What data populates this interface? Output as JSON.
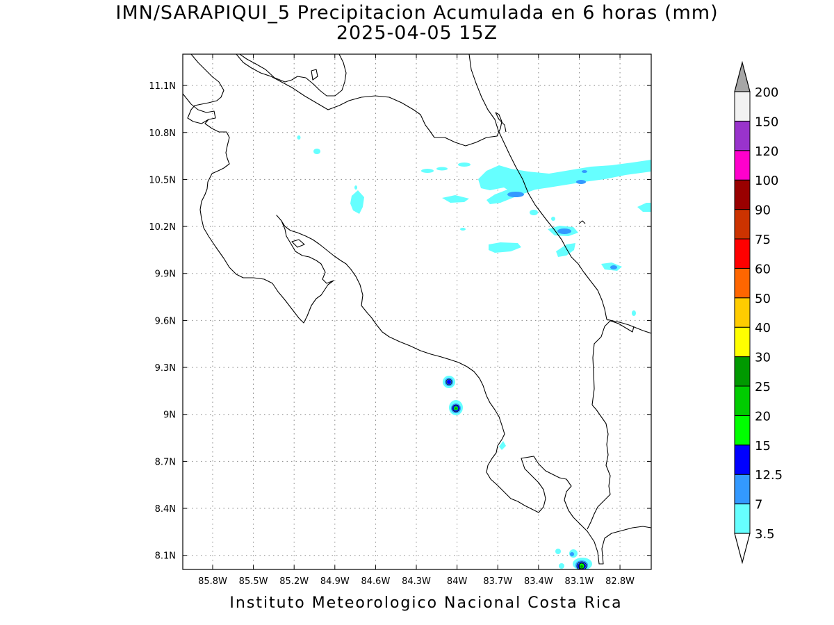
{
  "title": "IMN/SARAPIQUI_5 Precipitacion Acumulada en 6 horas (mm)",
  "subtitle": "2025-04-05 15Z",
  "footer": "Instituto Meteorologico Nacional Costa Rica",
  "map": {
    "lon_range": [
      -86.02,
      -82.57
    ],
    "lat_range": [
      8.01,
      11.3
    ],
    "lon_ticks": [
      "85.8W",
      "85.5W",
      "85.2W",
      "84.9W",
      "84.6W",
      "84.3W",
      "84W",
      "83.7W",
      "83.4W",
      "83.1W",
      "82.8W"
    ],
    "lat_ticks": [
      "11.1N",
      "10.8N",
      "10.5N",
      "10.2N",
      "9.9N",
      "9.6N",
      "9.3N",
      "9N",
      "8.7N",
      "8.4N",
      "8.1N"
    ],
    "gridlines": "dotted"
  },
  "colorbar": {
    "labels": [
      "3.5",
      "7",
      "12.5",
      "15",
      "20",
      "25",
      "30",
      "40",
      "50",
      "60",
      "75",
      "90",
      "100",
      "120",
      "150",
      "200"
    ],
    "colors": [
      "#66ffff",
      "#3399ff",
      "#0000ff",
      "#00ff00",
      "#00cc00",
      "#009900",
      "#ffff00",
      "#ffcc00",
      "#ff6600",
      "#ff0000",
      "#cc3300",
      "#990000",
      "#ff00cc",
      "#9933cc",
      "#f2f2f2",
      "#a6a6a6"
    ]
  },
  "legend_position": "right"
}
